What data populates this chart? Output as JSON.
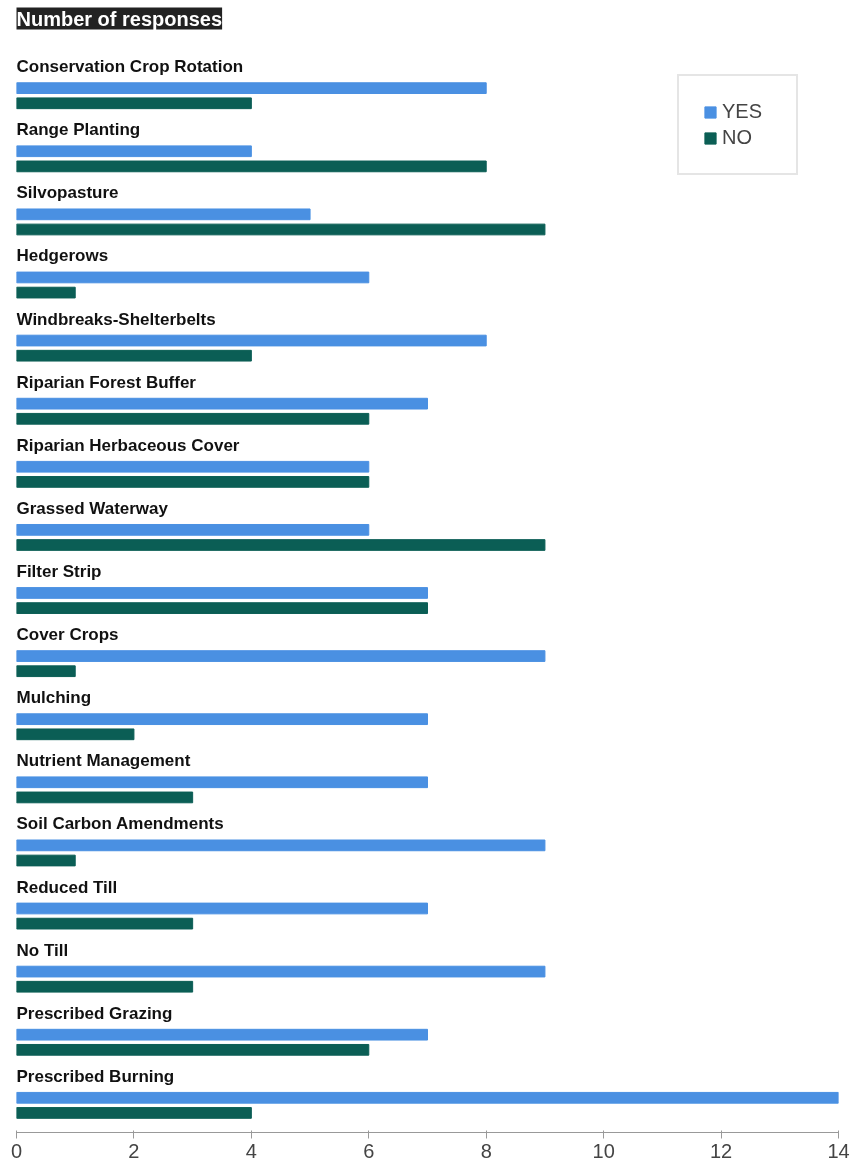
{
  "chart_data": {
    "type": "bar",
    "orientation": "horizontal",
    "title": "Number of responses",
    "categories": [
      "Conservation Crop Rotation",
      "Range Planting",
      "Silvopasture",
      "Hedgerows",
      "Windbreaks-Shelterbelts",
      "Riparian Forest Buffer",
      "Riparian Herbaceous Cover",
      "Grassed Waterway",
      "Filter Strip",
      "Cover Crops",
      "Mulching",
      "Nutrient Management",
      "Soil Carbon Amendments",
      "Reduced Till",
      "No Till",
      "Prescribed Grazing",
      "Prescribed Burning"
    ],
    "series": [
      {
        "name": "YES",
        "color": "#4a90e2",
        "values": [
          8,
          4,
          5,
          6,
          8,
          7,
          6,
          6,
          7,
          9,
          7,
          7,
          9,
          7,
          9,
          7,
          14
        ]
      },
      {
        "name": "NO",
        "color": "#0b5e55",
        "values": [
          4,
          8,
          9,
          1,
          4,
          6,
          6,
          9,
          7,
          1,
          2,
          3,
          1,
          3,
          3,
          6,
          4
        ]
      }
    ],
    "xlim": [
      0,
      14
    ],
    "xticks": [
      0,
      2,
      4,
      6,
      8,
      10,
      12,
      14
    ],
    "grid": false,
    "legend": "top right"
  }
}
